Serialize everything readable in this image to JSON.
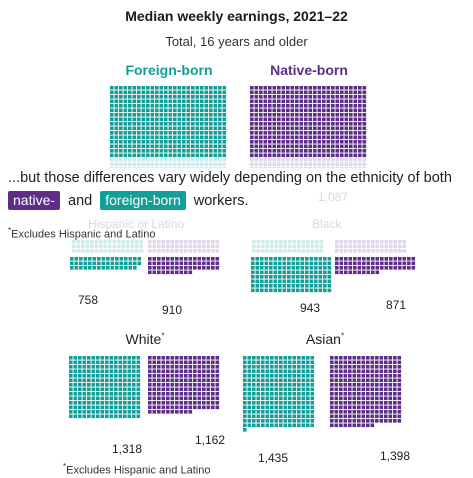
{
  "title": "Median weekly earnings, 2021–22",
  "subtitle": "Total, 16 years and older",
  "labels": {
    "foreign": "Foreign-born",
    "native": "Native-born"
  },
  "colors": {
    "foreign": "#139f99",
    "native": "#5e2d87",
    "foreign_faded": "#cdeceb",
    "native_faded": "#e2d6ec"
  },
  "overlay": {
    "line1": "...but those differences vary widely depending on the ethnicity of both",
    "chip_native": "native-",
    "and": "and",
    "chip_foreign": "foreign-born",
    "workers": "workers."
  },
  "faded_bits": {
    "total_native": "1,087",
    "group_left": "Hispanic or Latino",
    "group_right": "Black"
  },
  "footnote_top": "Excludes Hispanic and Latino",
  "footnote_bottom": "Excludes Hispanic and Latino",
  "footnote_mark": "*",
  "groups": {
    "white": {
      "title": "White",
      "mark": "*"
    },
    "asian": {
      "title": "Asian",
      "mark": "*"
    }
  },
  "chart_data": {
    "type": "waffle",
    "unit_note": "Median weekly earnings in dollars",
    "categories": [
      "Hispanic or Latino",
      "Black",
      "White",
      "Asian"
    ],
    "series": [
      {
        "name": "Foreign-born",
        "values": [
          758,
          943,
          1318,
          1435
        ]
      },
      {
        "name": "Native-born",
        "values": [
          910,
          871,
          1162,
          1398
        ]
      }
    ],
    "value_labels": {
      "hispanic_foreign": "758",
      "hispanic_native": "910",
      "black_foreign": "943",
      "black_native": "871",
      "white_foreign": "1,318",
      "white_native": "1,162",
      "asian_foreign": "1,435",
      "asian_native": "1,398"
    }
  }
}
